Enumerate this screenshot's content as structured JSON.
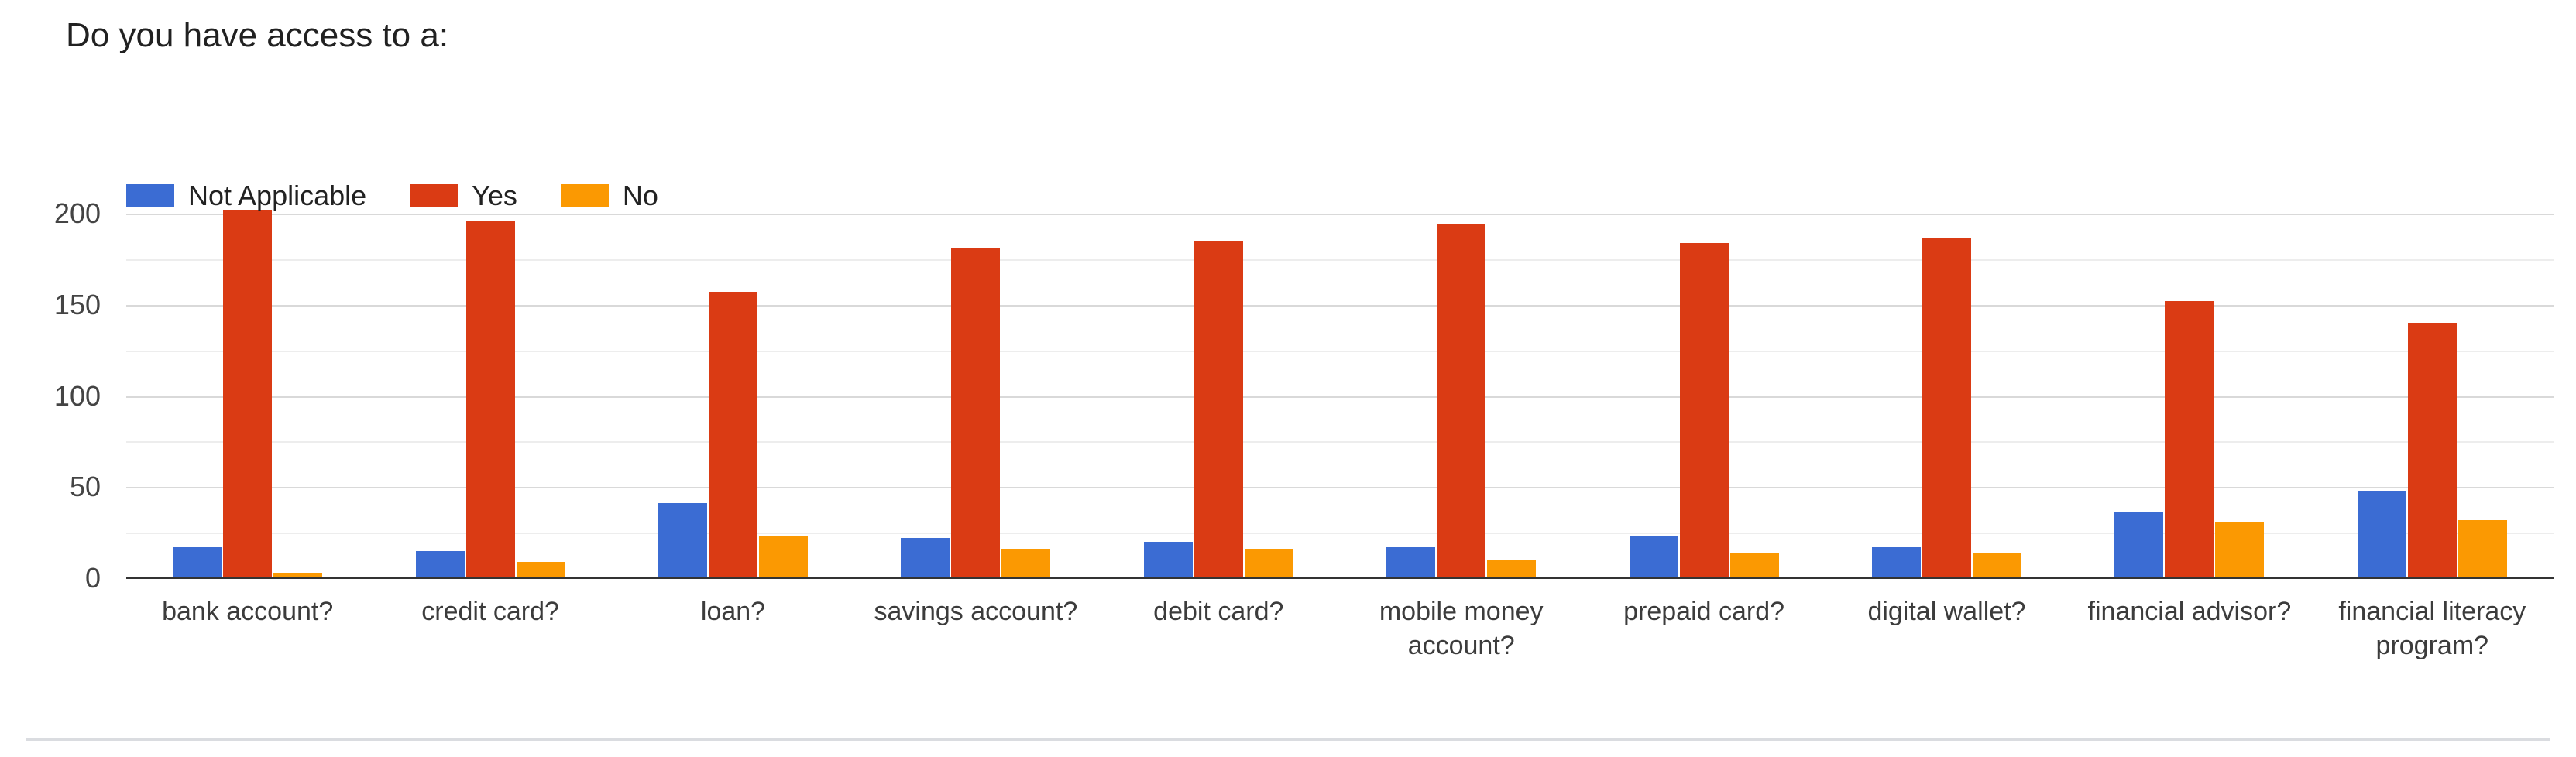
{
  "page": {
    "title": "Do you have access to a:"
  },
  "chart_data": {
    "type": "bar",
    "title": "Do you have access to a:",
    "categories": [
      "bank account?",
      "credit card?",
      "loan?",
      "savings account?",
      "debit card?",
      "mobile money account?",
      "prepaid card?",
      "digital wallet?",
      "financial advisor?",
      "financial literacy program?"
    ],
    "series": [
      {
        "name": "Not Applicable",
        "color": "#3B6CD3",
        "values": [
          17,
          15,
          41,
          22,
          20,
          17,
          23,
          17,
          36,
          48
        ]
      },
      {
        "name": "Yes",
        "color": "#DA3B14",
        "values": [
          202,
          196,
          157,
          181,
          185,
          194,
          184,
          187,
          152,
          140
        ]
      },
      {
        "name": "No",
        "color": "#FB9902",
        "values": [
          3,
          9,
          23,
          16,
          16,
          10,
          14,
          14,
          31,
          32
        ]
      }
    ],
    "xlabel": "",
    "ylabel": "",
    "ylim": [
      0,
      200
    ],
    "yticks": [
      0,
      50,
      100,
      150,
      200
    ],
    "grid": "horizontal, every 25 units (minor unlabeled lines between labeled ticks)",
    "legend_position": "top-left",
    "colors": {
      "major_gridline": "#d9d9d9",
      "minor_gridline": "#ededed",
      "axis_line": "#333333",
      "tick_text": "#444444",
      "title_text": "#212121",
      "divider": "#dadce0"
    }
  }
}
